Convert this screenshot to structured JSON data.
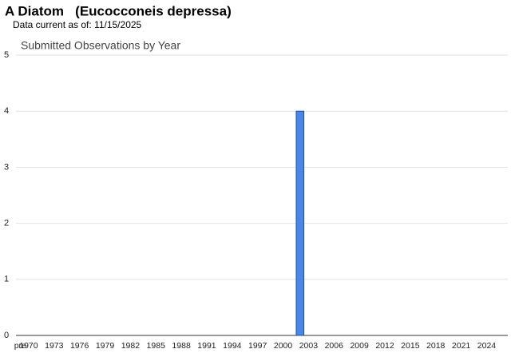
{
  "chart_data": {
    "type": "bar",
    "title": "A Diatom   (Eucocconeis depressa)",
    "subtitle": "Data current as of: 11/15/2025",
    "chart_title": "Submitted Observations by Year",
    "categories": [
      "pre",
      "1970",
      null,
      null,
      "1973",
      null,
      null,
      "1976",
      null,
      null,
      "1979",
      null,
      null,
      "1982",
      null,
      null,
      "1985",
      null,
      null,
      "1988",
      null,
      null,
      "1991",
      null,
      null,
      "1994",
      null,
      null,
      "1997",
      null,
      null,
      "2000",
      null,
      null,
      "2003",
      null,
      null,
      "2006",
      null,
      null,
      "2009",
      null,
      null,
      "2012",
      null,
      null,
      "2015",
      null,
      null,
      "2018",
      null,
      null,
      "2021",
      null,
      null,
      "2024",
      null,
      null
    ],
    "values": [
      0,
      0,
      0,
      0,
      0,
      0,
      0,
      0,
      0,
      0,
      0,
      0,
      0,
      0,
      0,
      0,
      0,
      0,
      0,
      0,
      0,
      0,
      0,
      0,
      0,
      0,
      0,
      0,
      0,
      0,
      0,
      0,
      0,
      4,
      0,
      0,
      0,
      0,
      0,
      0,
      0,
      0,
      0,
      0,
      0,
      0,
      0,
      0,
      0,
      0,
      0,
      0,
      0,
      0,
      0,
      0,
      0,
      0
    ],
    "color": "#4a86e8",
    "ylim": [
      0,
      5
    ],
    "yticks": [
      0,
      1,
      2,
      3,
      4,
      5
    ],
    "grid": true
  }
}
